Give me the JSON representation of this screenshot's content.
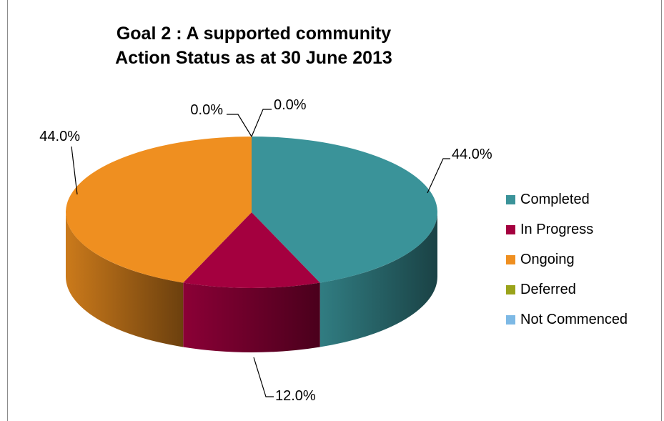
{
  "chart_data": {
    "type": "pie",
    "title_line1": "Goal 2 : A supported community",
    "title_line2": "Action Status as at 30 June 2013",
    "categories": [
      "Completed",
      "In Progress",
      "Ongoing",
      "Deferred",
      "Not Commenced"
    ],
    "values": [
      44.0,
      12.0,
      44.0,
      0.0,
      0.0
    ],
    "data_labels": [
      "44.0%",
      "12.0%",
      "44.0%",
      "0.0%",
      "0.0%"
    ],
    "colors": [
      "#3a9399",
      "#a4003f",
      "#ef8f20",
      "#9aa31a",
      "#7db9e5"
    ],
    "legend_position": "right",
    "style": "3d-pie"
  }
}
